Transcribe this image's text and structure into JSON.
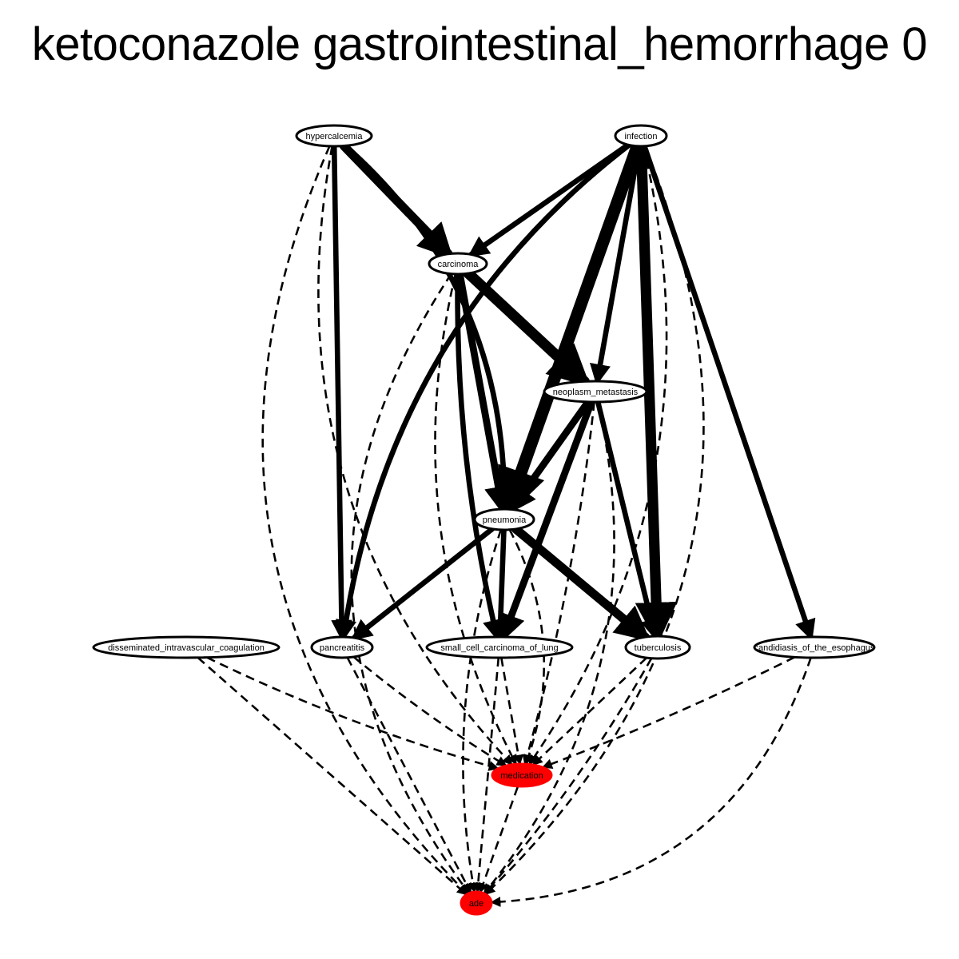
{
  "title": "ketoconazole gastrointestinal_hemorrhage 0",
  "colors": {
    "stroke": "#000000",
    "node_fill": "#ffffff",
    "outcome_fill": "#ff0000"
  },
  "nodes": [
    {
      "id": "hypercalcemia",
      "label": "hypercalcemia"
    },
    {
      "id": "infection",
      "label": "infection"
    },
    {
      "id": "carcinoma",
      "label": "carcinoma"
    },
    {
      "id": "neoplasm_metastasis",
      "label": "neoplasm_metastasis"
    },
    {
      "id": "pneumonia",
      "label": "pneumonia"
    },
    {
      "id": "disseminated_intravascular_coagulation",
      "label": "disseminated_intravascular_coagulation"
    },
    {
      "id": "pancreatitis",
      "label": "pancreatitis"
    },
    {
      "id": "small_cell_carcinoma_of_lung",
      "label": "small_cell_carcinoma_of_lung"
    },
    {
      "id": "tuberculosis",
      "label": "tuberculosis"
    },
    {
      "id": "candidiasis_of_the_esophagus",
      "label": "candidiasis_of_the_esophagus"
    },
    {
      "id": "medication",
      "label": "medication",
      "highlight": true
    },
    {
      "id": "ade",
      "label": "ade",
      "highlight": true
    }
  ],
  "edges": [
    {
      "from": "hypercalcemia",
      "to": "carcinoma",
      "style": "solid",
      "weight": 4
    },
    {
      "from": "hypercalcemia",
      "to": "pancreatitis",
      "style": "solid",
      "weight": 2
    },
    {
      "from": "hypercalcemia",
      "to": "pneumonia",
      "style": "solid",
      "weight": 2
    },
    {
      "from": "hypercalcemia",
      "to": "medication",
      "style": "dashed",
      "weight": 1
    },
    {
      "from": "hypercalcemia",
      "to": "ade",
      "style": "dashed",
      "weight": 1
    },
    {
      "from": "infection",
      "to": "carcinoma",
      "style": "solid",
      "weight": 2
    },
    {
      "from": "infection",
      "to": "pancreatitis",
      "style": "solid",
      "weight": 2
    },
    {
      "from": "infection",
      "to": "neoplasm_metastasis",
      "style": "solid",
      "weight": 2
    },
    {
      "from": "infection",
      "to": "pneumonia",
      "style": "solid",
      "weight": 6
    },
    {
      "from": "infection",
      "to": "tuberculosis",
      "style": "solid",
      "weight": 5
    },
    {
      "from": "infection",
      "to": "candidiasis_of_the_esophagus",
      "style": "solid",
      "weight": 2
    },
    {
      "from": "infection",
      "to": "medication",
      "style": "dashed",
      "weight": 1
    },
    {
      "from": "infection",
      "to": "ade",
      "style": "dashed",
      "weight": 1
    },
    {
      "from": "carcinoma",
      "to": "neoplasm_metastasis",
      "style": "solid",
      "weight": 5
    },
    {
      "from": "carcinoma",
      "to": "pneumonia",
      "style": "solid",
      "weight": 3
    },
    {
      "from": "carcinoma",
      "to": "small_cell_carcinoma_of_lung",
      "style": "solid",
      "weight": 2
    },
    {
      "from": "carcinoma",
      "to": "medication",
      "style": "dashed",
      "weight": 1
    },
    {
      "from": "carcinoma",
      "to": "ade",
      "style": "dashed",
      "weight": 1
    },
    {
      "from": "neoplasm_metastasis",
      "to": "pneumonia",
      "style": "solid",
      "weight": 3
    },
    {
      "from": "neoplasm_metastasis",
      "to": "small_cell_carcinoma_of_lung",
      "style": "solid",
      "weight": 3
    },
    {
      "from": "neoplasm_metastasis",
      "to": "tuberculosis",
      "style": "solid",
      "weight": 2
    },
    {
      "from": "neoplasm_metastasis",
      "to": "medication",
      "style": "dashed",
      "weight": 1
    },
    {
      "from": "neoplasm_metastasis",
      "to": "ade",
      "style": "dashed",
      "weight": 1
    },
    {
      "from": "pneumonia",
      "to": "pancreatitis",
      "style": "solid",
      "weight": 2
    },
    {
      "from": "pneumonia",
      "to": "small_cell_carcinoma_of_lung",
      "style": "solid",
      "weight": 2
    },
    {
      "from": "pneumonia",
      "to": "tuberculosis",
      "style": "solid",
      "weight": 4
    },
    {
      "from": "pneumonia",
      "to": "medication",
      "style": "dashed",
      "weight": 1
    },
    {
      "from": "pneumonia",
      "to": "ade",
      "style": "dashed",
      "weight": 1
    },
    {
      "from": "disseminated_intravascular_coagulation",
      "to": "medication",
      "style": "dashed",
      "weight": 1
    },
    {
      "from": "disseminated_intravascular_coagulation",
      "to": "ade",
      "style": "dashed",
      "weight": 1
    },
    {
      "from": "pancreatitis",
      "to": "medication",
      "style": "dashed",
      "weight": 1
    },
    {
      "from": "pancreatitis",
      "to": "ade",
      "style": "dashed",
      "weight": 1
    },
    {
      "from": "small_cell_carcinoma_of_lung",
      "to": "medication",
      "style": "dashed",
      "weight": 1
    },
    {
      "from": "small_cell_carcinoma_of_lung",
      "to": "ade",
      "style": "dashed",
      "weight": 1
    },
    {
      "from": "tuberculosis",
      "to": "medication",
      "style": "dashed",
      "weight": 1
    },
    {
      "from": "tuberculosis",
      "to": "ade",
      "style": "dashed",
      "weight": 1
    },
    {
      "from": "candidiasis_of_the_esophagus",
      "to": "medication",
      "style": "dashed",
      "weight": 1
    },
    {
      "from": "candidiasis_of_the_esophagus",
      "to": "ade",
      "style": "dashed",
      "weight": 1
    },
    {
      "from": "medication",
      "to": "ade",
      "style": "dashed",
      "weight": 1
    }
  ]
}
